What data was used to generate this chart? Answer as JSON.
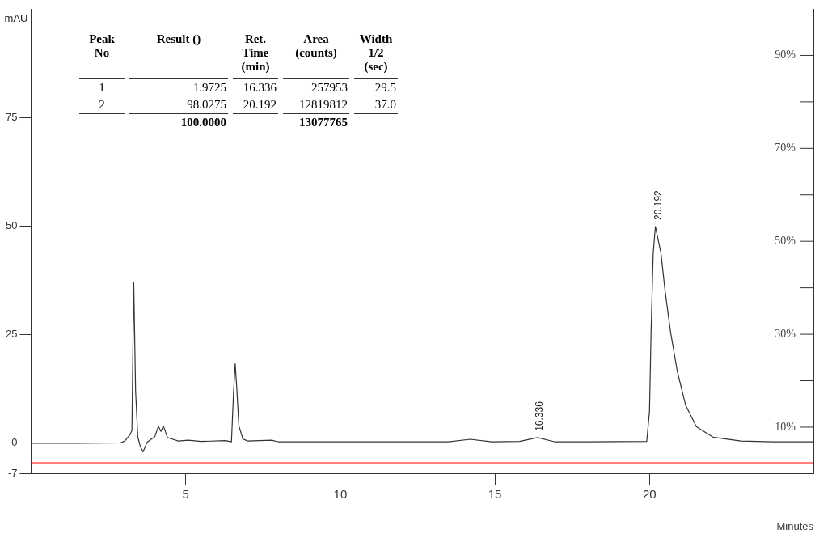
{
  "chart_data": {
    "type": "line",
    "xlabel": "Minutes",
    "ylabel": "mAU",
    "x": [
      0,
      1.5,
      2.9,
      3.03,
      3.2,
      3.26,
      3.32,
      3.38,
      3.45,
      3.53,
      3.62,
      3.75,
      3.88,
      4.0,
      4.12,
      4.2,
      4.28,
      4.41,
      4.63,
      4.76,
      5.08,
      5.5,
      6.28,
      6.48,
      6.55,
      6.6,
      6.65,
      6.72,
      6.85,
      7.0,
      7.78,
      8.0,
      10.0,
      12.0,
      13.5,
      14.2,
      14.9,
      15.8,
      16.38,
      16.95,
      18.0,
      19.91,
      20.0,
      20.05,
      20.12,
      20.19,
      20.37,
      20.5,
      20.68,
      20.9,
      21.17,
      21.52,
      22.05,
      22.95,
      24.0,
      25.3
    ],
    "series": [
      {
        "color": "#333333",
        "values": [
          0,
          0,
          0.1,
          0.5,
          2,
          2.9,
          37.1,
          12,
          1.5,
          -0.7,
          -2.0,
          0.2,
          0.9,
          1.5,
          3.9,
          2.7,
          4.0,
          1.3,
          0.8,
          0.5,
          0.7,
          0.4,
          0.6,
          0.3,
          12,
          18.3,
          13,
          4,
          1,
          0.5,
          0.7,
          0.3,
          0.3,
          0.3,
          0.3,
          0.9,
          0.3,
          0.4,
          1.3,
          0.3,
          0.3,
          0.4,
          7.4,
          25.6,
          43.8,
          49.9,
          43.8,
          35.3,
          25.6,
          16.5,
          8.7,
          3.8,
          1.4,
          0.5,
          0.3,
          0.3
        ]
      }
    ],
    "xlim": [
      0,
      25.3
    ],
    "xticks": [
      5,
      10,
      15,
      20,
      {
        "value": 25,
        "label": null
      }
    ],
    "ylim": [
      -7,
      100
    ],
    "yticks": [
      -7,
      0,
      25,
      50,
      75
    ],
    "y2lim": [
      0,
      100
    ],
    "y2ticks": [
      {
        "value": 10,
        "label": "10%"
      },
      {
        "value": 20,
        "label": null
      },
      {
        "value": 30,
        "label": "30%"
      },
      {
        "value": 40,
        "label": null
      },
      {
        "value": 50,
        "label": "50%"
      },
      {
        "value": 60,
        "label": null
      },
      {
        "value": 70,
        "label": "70%"
      },
      {
        "value": 80,
        "label": null
      },
      {
        "value": 90,
        "label": "90%"
      }
    ],
    "ref_lines": [
      {
        "axis": "y",
        "value": -4.5,
        "color": "#ff0000"
      }
    ],
    "grid": false,
    "legend": false,
    "marker": "none",
    "line_style": "solid",
    "annotations": [
      "Peak No",
      "Result ()",
      "Ret. Time (min)",
      "Area (counts)",
      "Width 1/2 (sec)",
      "1",
      "1.9725",
      "16.336",
      "257953",
      "29.5",
      "2",
      "98.0275",
      "20.192",
      "12819812",
      "37.0",
      "100.0000",
      "13077765",
      {
        "text": "16.336",
        "x": 16.336,
        "y": 1.3
      },
      {
        "text": "20.192",
        "x": 20.192,
        "y": 49.9
      }
    ]
  }
}
